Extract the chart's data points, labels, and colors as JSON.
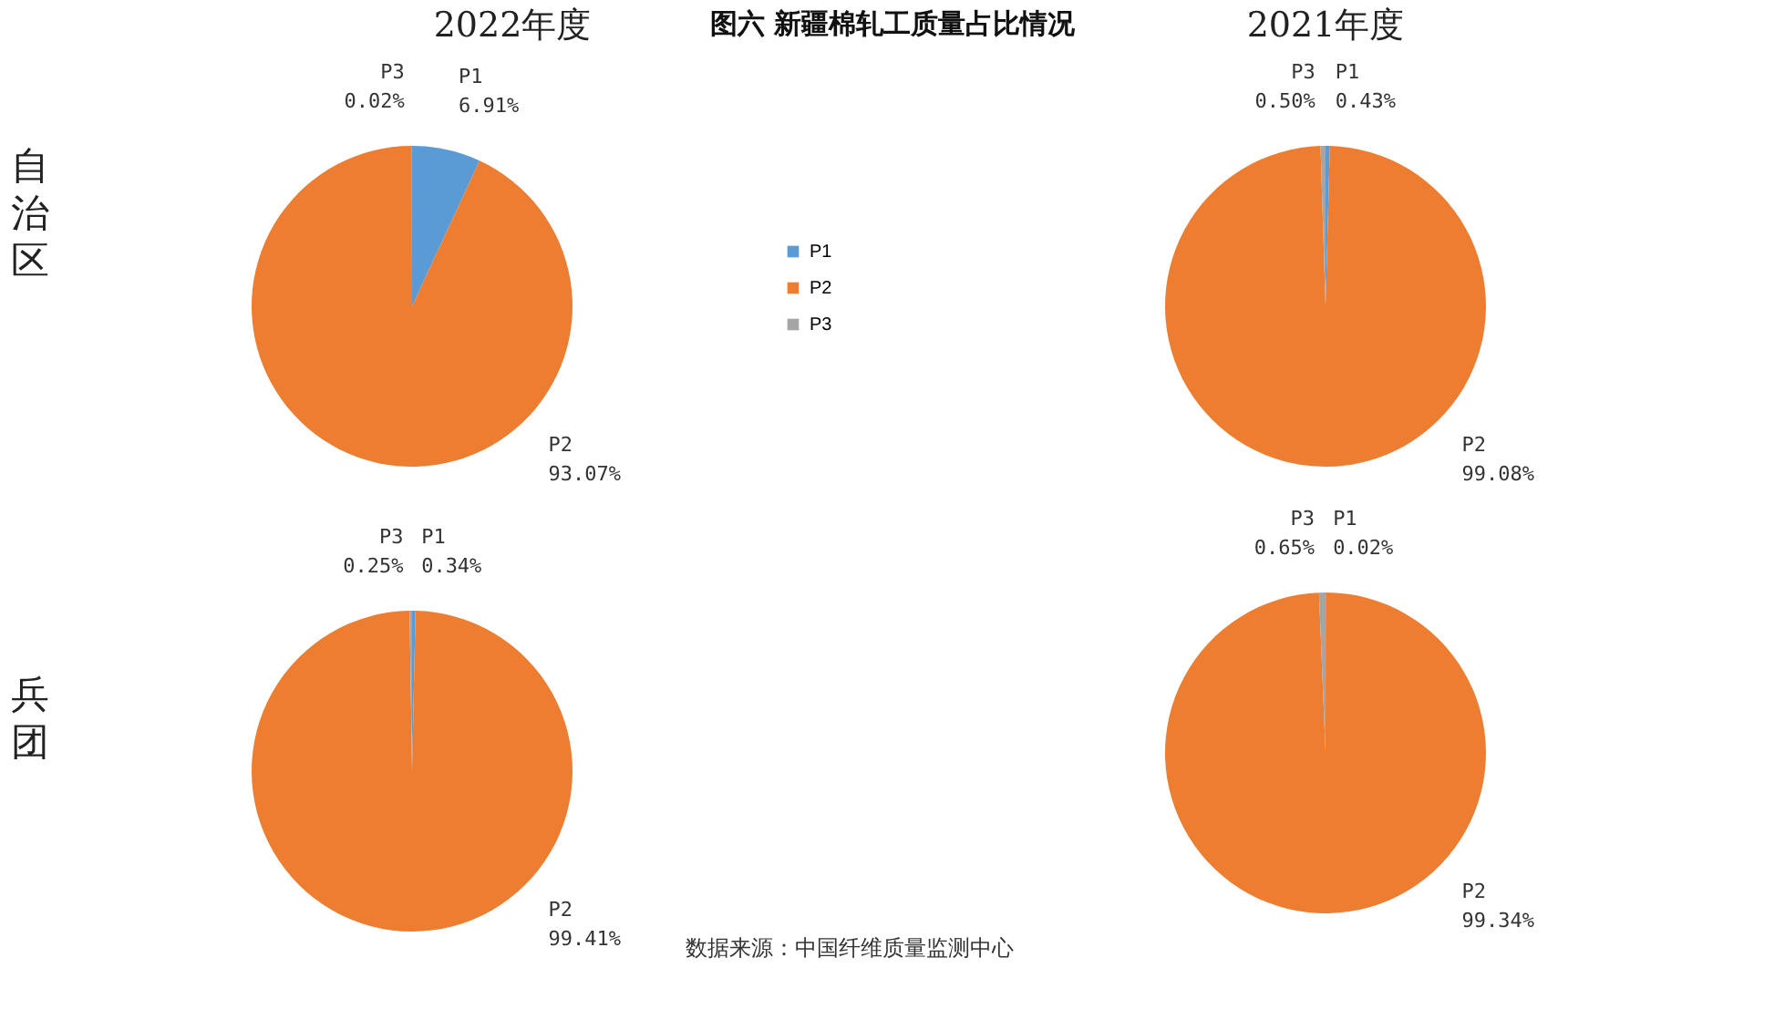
{
  "chart_data": [
    {
      "type": "pie",
      "title": "2022年度",
      "ylabel": "自治区",
      "legend": "right",
      "categories": [
        "P1",
        "P2",
        "P3"
      ],
      "values": [
        6.91,
        93.07,
        0.02
      ],
      "value_labels": [
        "6.91%",
        "93.07%",
        "0.02%"
      ],
      "colors": [
        "#5b9bd5",
        "#ed7d31",
        "#a5a5a5"
      ],
      "annotations": [
        "图六  新疆棉轧工质量占比情况",
        "数据来源：中国纤维质量监测中心"
      ]
    },
    {
      "type": "pie",
      "title": "2021年度",
      "categories": [
        "P1",
        "P2",
        "P3"
      ],
      "values": [
        0.43,
        99.08,
        0.5
      ],
      "value_labels": [
        "0.43%",
        "99.08%",
        "0.50%"
      ],
      "colors": [
        "#5b9bd5",
        "#ed7d31",
        "#a5a5a5"
      ]
    },
    {
      "type": "pie",
      "ylabel": "兵团",
      "categories": [
        "P1",
        "P2",
        "P3"
      ],
      "values": [
        0.34,
        99.41,
        0.25
      ],
      "value_labels": [
        "0.34%",
        "99.41%",
        "0.25%"
      ],
      "colors": [
        "#5b9bd5",
        "#ed7d31",
        "#a5a5a5"
      ]
    },
    {
      "type": "pie",
      "categories": [
        "P1",
        "P2",
        "P3"
      ],
      "values": [
        0.02,
        99.34,
        0.65
      ],
      "value_labels": [
        "0.02%",
        "99.34%",
        "0.65%"
      ],
      "colors": [
        "#5b9bd5",
        "#ed7d31",
        "#a5a5a5"
      ]
    }
  ]
}
